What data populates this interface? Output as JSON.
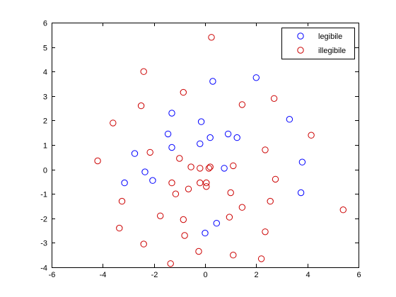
{
  "chart_data": {
    "type": "scatter",
    "title": "",
    "xlabel": "",
    "ylabel": "",
    "xlim": [
      -6,
      6
    ],
    "ylim": [
      -4,
      6
    ],
    "xticks": [
      -6,
      -4,
      -2,
      0,
      2,
      4,
      6
    ],
    "yticks": [
      -4,
      -3,
      -2,
      -1,
      0,
      1,
      2,
      3,
      4,
      5,
      6
    ],
    "grid": false,
    "legend_position": "top-right",
    "marker": "open-circle",
    "series": [
      {
        "name": "legibile",
        "color": "#0000ff",
        "points": [
          [
            0.3,
            3.6
          ],
          [
            2.0,
            3.75
          ],
          [
            -1.3,
            2.3
          ],
          [
            -0.15,
            1.95
          ],
          [
            3.3,
            2.05
          ],
          [
            -1.45,
            1.45
          ],
          [
            0.9,
            1.45
          ],
          [
            0.2,
            1.3
          ],
          [
            1.25,
            1.3
          ],
          [
            -0.2,
            1.05
          ],
          [
            -1.3,
            0.9
          ],
          [
            -2.75,
            0.65
          ],
          [
            3.8,
            0.3
          ],
          [
            0.75,
            0.05
          ],
          [
            -2.35,
            -0.1
          ],
          [
            -2.05,
            -0.45
          ],
          [
            -3.15,
            -0.55
          ],
          [
            3.75,
            -0.95
          ],
          [
            0.45,
            -2.2
          ],
          [
            0.0,
            -2.6
          ]
        ]
      },
      {
        "name": "illegibile",
        "color": "#cc0000",
        "points": [
          [
            0.25,
            5.4
          ],
          [
            -2.4,
            4.0
          ],
          [
            -0.85,
            3.15
          ],
          [
            2.7,
            2.9
          ],
          [
            1.45,
            2.65
          ],
          [
            -2.5,
            2.6
          ],
          [
            -3.6,
            1.9
          ],
          [
            4.15,
            1.4
          ],
          [
            2.35,
            0.8
          ],
          [
            -2.15,
            0.7
          ],
          [
            -1.0,
            0.45
          ],
          [
            -4.2,
            0.35
          ],
          [
            1.1,
            0.15
          ],
          [
            -0.55,
            0.1
          ],
          [
            -0.2,
            0.05
          ],
          [
            0.2,
            0.1
          ],
          [
            0.15,
            0.05
          ],
          [
            2.75,
            -0.4
          ],
          [
            -1.3,
            -0.55
          ],
          [
            -0.2,
            -0.55
          ],
          [
            0.05,
            -0.55
          ],
          [
            0.05,
            -0.7
          ],
          [
            -0.65,
            -0.8
          ],
          [
            1.0,
            -0.95
          ],
          [
            -1.15,
            -1.0
          ],
          [
            2.55,
            -1.3
          ],
          [
            -3.25,
            -1.3
          ],
          [
            1.45,
            -1.55
          ],
          [
            5.4,
            -1.65
          ],
          [
            -1.75,
            -1.9
          ],
          [
            0.95,
            -1.95
          ],
          [
            -0.85,
            -2.05
          ],
          [
            -3.35,
            -2.4
          ],
          [
            2.35,
            -2.55
          ],
          [
            -0.8,
            -2.7
          ],
          [
            -2.4,
            -3.05
          ],
          [
            -0.25,
            -3.35
          ],
          [
            1.1,
            -3.5
          ],
          [
            2.2,
            -3.65
          ],
          [
            -1.35,
            -3.85
          ]
        ]
      }
    ]
  }
}
